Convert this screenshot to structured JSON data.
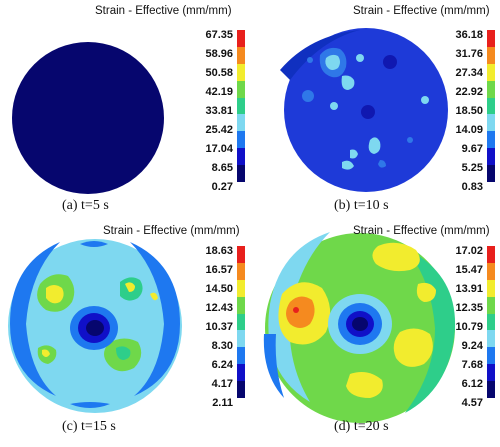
{
  "legend_title": "Strain - Effective (mm/mm)",
  "colorbar_colors": [
    "#e8201c",
    "#f58a1f",
    "#f2ec2e",
    "#6fd84a",
    "#2ece8a",
    "#7ed8f0",
    "#1e78f0",
    "#1010c8",
    "#06066e"
  ],
  "panels": [
    {
      "caption": "(a) t=5 s",
      "ticks": [
        "67.35",
        "58.96",
        "50.58",
        "42.19",
        "33.81",
        "25.42",
        "17.04",
        "8.65",
        "0.27"
      ]
    },
    {
      "caption": "(b) t=10 s",
      "ticks": [
        "36.18",
        "31.76",
        "27.34",
        "22.92",
        "18.50",
        "14.09",
        "9.67",
        "5.25",
        "0.83"
      ]
    },
    {
      "caption": "(c) t=15 s",
      "ticks": [
        "18.63",
        "16.57",
        "14.50",
        "12.43",
        "10.37",
        "8.30",
        "6.24",
        "4.17",
        "2.11"
      ]
    },
    {
      "caption": "(d) t=20 s",
      "ticks": [
        "17.02",
        "15.47",
        "13.91",
        "12.35",
        "10.79",
        "9.24",
        "7.68",
        "6.12",
        "4.57"
      ]
    }
  ]
}
